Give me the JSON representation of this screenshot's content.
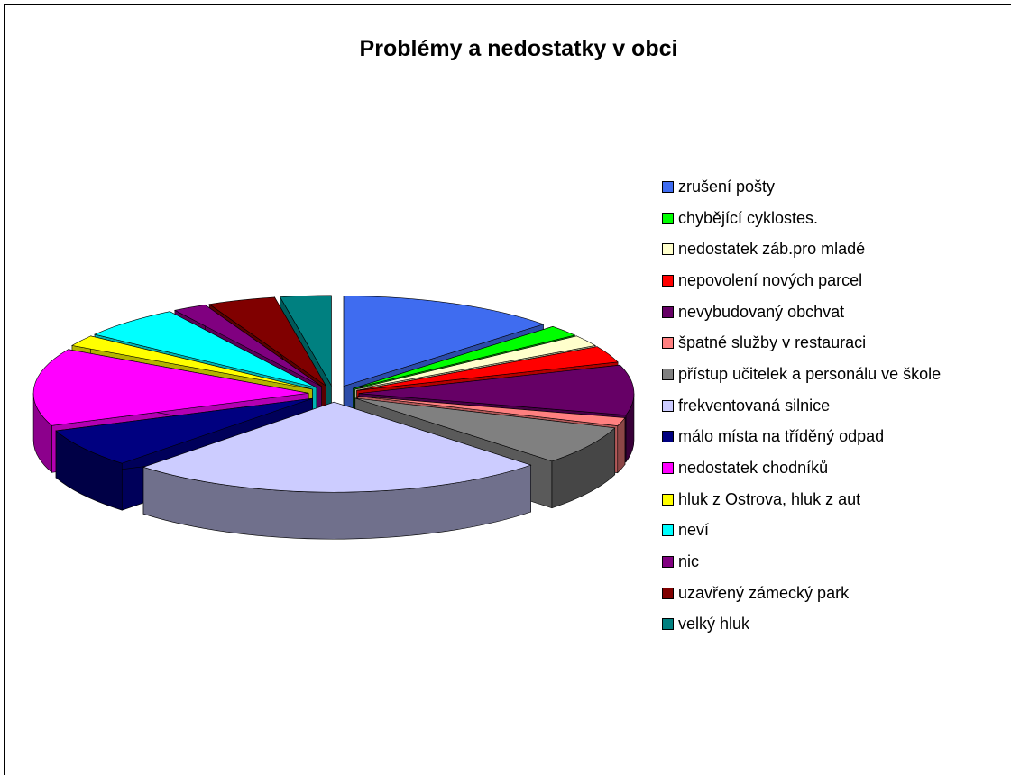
{
  "chart_data": {
    "type": "pie",
    "style": "3d-exploded",
    "title": "Problémy a nedostatky v obci",
    "legend_position": "right",
    "slices": [
      {
        "label": "zrušení pošty",
        "value": 13,
        "color": "#3f6cf0"
      },
      {
        "label": "chybějící cyklostes.",
        "value": 2,
        "color": "#00ff00"
      },
      {
        "label": "nedostatek záb.pro mladé",
        "value": 2,
        "color": "#ffffcc"
      },
      {
        "label": "nepovolení nových parcel",
        "value": 3,
        "color": "#ff0000"
      },
      {
        "label": "nevybudovaný obchvat",
        "value": 9,
        "color": "#660066"
      },
      {
        "label": "špatné služby v restauraci",
        "value": 1.5,
        "color": "#ff8080"
      },
      {
        "label": "přístup učitelek a personálu ve škole",
        "value": 7,
        "color": "#808080"
      },
      {
        "label": "frekventovaná silnice",
        "value": 25,
        "color": "#ccccff"
      },
      {
        "label": "málo místa na tříděný odpad",
        "value": 7,
        "color": "#000080"
      },
      {
        "label": "nedostatek chodníků",
        "value": 14,
        "color": "#ff00ff"
      },
      {
        "label": "hluk z Ostrova, hluk z aut",
        "value": 2,
        "color": "#ffff00"
      },
      {
        "label": "neví",
        "value": 6,
        "color": "#00ffff"
      },
      {
        "label": "nic",
        "value": 2,
        "color": "#800080"
      },
      {
        "label": "uzavřený zámecký park",
        "value": 4,
        "color": "#800000"
      },
      {
        "label": "velký hluk",
        "value": 3,
        "color": "#008080"
      }
    ]
  }
}
